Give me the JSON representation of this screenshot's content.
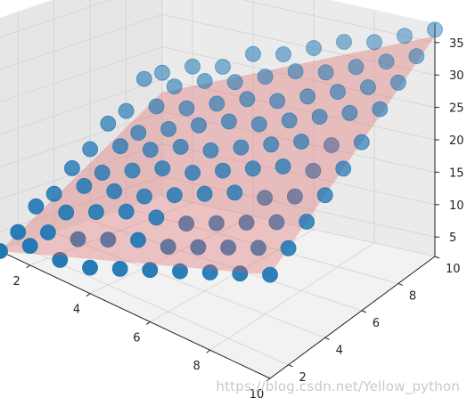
{
  "watermark": "https://blog.csdn.net/Yellow_python",
  "colors": {
    "point": "#1f77b4",
    "plane": "#e05a5a"
  },
  "chart_data": {
    "type": "scatter3d",
    "title": "",
    "xlabel": "",
    "ylabel": "",
    "zlabel": "",
    "xlim": [
      1,
      10
    ],
    "ylim": [
      1,
      10
    ],
    "zlim": [
      2,
      38
    ],
    "xticks": [
      2,
      4,
      6,
      8,
      10
    ],
    "yticks": [
      2,
      4,
      6,
      8,
      10
    ],
    "zticks": [
      5,
      10,
      15,
      20,
      25,
      30,
      35
    ],
    "fitted_plane": {
      "equation": "z = 2*x + 2*y - 2",
      "corners_z": [
        2,
        18,
        36,
        18
      ]
    },
    "points": [
      {
        "x": 1,
        "y": 1,
        "z": 2
      },
      {
        "x": 1,
        "y": 2,
        "z": 4
      },
      {
        "x": 1,
        "y": 3,
        "z": 7
      },
      {
        "x": 1,
        "y": 4,
        "z": 8
      },
      {
        "x": 1,
        "y": 5,
        "z": 11
      },
      {
        "x": 1,
        "y": 6,
        "z": 13
      },
      {
        "x": 1,
        "y": 7,
        "z": 16
      },
      {
        "x": 1,
        "y": 8,
        "z": 17
      },
      {
        "x": 1,
        "y": 9,
        "z": 21
      },
      {
        "x": 1,
        "y": 10,
        "z": 21
      },
      {
        "x": 2,
        "y": 1,
        "z": 5
      },
      {
        "x": 2,
        "y": 2,
        "z": 6
      },
      {
        "x": 2,
        "y": 3,
        "z": 8
      },
      {
        "x": 2,
        "y": 4,
        "z": 11
      },
      {
        "x": 2,
        "y": 5,
        "z": 12
      },
      {
        "x": 2,
        "y": 6,
        "z": 15
      },
      {
        "x": 2,
        "y": 7,
        "z": 16
      },
      {
        "x": 2,
        "y": 8,
        "z": 19
      },
      {
        "x": 2,
        "y": 9,
        "z": 21
      },
      {
        "x": 2,
        "y": 10,
        "z": 23
      },
      {
        "x": 3,
        "y": 1,
        "z": 5
      },
      {
        "x": 3,
        "y": 2,
        "z": 7
      },
      {
        "x": 3,
        "y": 3,
        "z": 10
      },
      {
        "x": 3,
        "y": 4,
        "z": 12
      },
      {
        "x": 3,
        "y": 5,
        "z": 14
      },
      {
        "x": 3,
        "y": 6,
        "z": 16
      },
      {
        "x": 3,
        "y": 7,
        "z": 18
      },
      {
        "x": 3,
        "y": 8,
        "z": 20
      },
      {
        "x": 3,
        "y": 9,
        "z": 23
      },
      {
        "x": 3,
        "y": 10,
        "z": 24
      },
      {
        "x": 4,
        "y": 1,
        "z": 6
      },
      {
        "x": 4,
        "y": 2,
        "z": 9
      },
      {
        "x": 4,
        "y": 3,
        "z": 12
      },
      {
        "x": 4,
        "y": 4,
        "z": 13
      },
      {
        "x": 4,
        "y": 5,
        "z": 16
      },
      {
        "x": 4,
        "y": 6,
        "z": 18
      },
      {
        "x": 4,
        "y": 7,
        "z": 20
      },
      {
        "x": 4,
        "y": 8,
        "z": 22
      },
      {
        "x": 4,
        "y": 9,
        "z": 24
      },
      {
        "x": 4,
        "y": 10,
        "z": 27
      },
      {
        "x": 5,
        "y": 1,
        "z": 8
      },
      {
        "x": 5,
        "y": 2,
        "z": 11
      },
      {
        "x": 5,
        "y": 3,
        "z": 13
      },
      {
        "x": 5,
        "y": 4,
        "z": 15
      },
      {
        "x": 5,
        "y": 5,
        "z": 17
      },
      {
        "x": 5,
        "y": 6,
        "z": 19
      },
      {
        "x": 5,
        "y": 7,
        "z": 22
      },
      {
        "x": 5,
        "y": 8,
        "z": 24
      },
      {
        "x": 5,
        "y": 9,
        "z": 26
      },
      {
        "x": 5,
        "y": 10,
        "z": 28
      },
      {
        "x": 6,
        "y": 1,
        "z": 10
      },
      {
        "x": 6,
        "y": 2,
        "z": 12
      },
      {
        "x": 6,
        "y": 3,
        "z": 14
      },
      {
        "x": 6,
        "y": 4,
        "z": 17
      },
      {
        "x": 6,
        "y": 5,
        "z": 19
      },
      {
        "x": 6,
        "y": 6,
        "z": 21
      },
      {
        "x": 6,
        "y": 7,
        "z": 23
      },
      {
        "x": 6,
        "y": 8,
        "z": 25
      },
      {
        "x": 6,
        "y": 9,
        "z": 28
      },
      {
        "x": 6,
        "y": 10,
        "z": 30
      },
      {
        "x": 7,
        "y": 1,
        "z": 12
      },
      {
        "x": 7,
        "y": 2,
        "z": 14
      },
      {
        "x": 7,
        "y": 3,
        "z": 16
      },
      {
        "x": 7,
        "y": 4,
        "z": 19
      },
      {
        "x": 7,
        "y": 5,
        "z": 21
      },
      {
        "x": 7,
        "y": 6,
        "z": 23
      },
      {
        "x": 7,
        "y": 7,
        "z": 25
      },
      {
        "x": 7,
        "y": 8,
        "z": 27
      },
      {
        "x": 7,
        "y": 9,
        "z": 29
      },
      {
        "x": 7,
        "y": 10,
        "z": 32
      },
      {
        "x": 8,
        "y": 1,
        "z": 14
      },
      {
        "x": 8,
        "y": 2,
        "z": 16
      },
      {
        "x": 8,
        "y": 3,
        "z": 18
      },
      {
        "x": 8,
        "y": 4,
        "z": 20
      },
      {
        "x": 8,
        "y": 5,
        "z": 23
      },
      {
        "x": 8,
        "y": 6,
        "z": 25
      },
      {
        "x": 8,
        "y": 7,
        "z": 27
      },
      {
        "x": 8,
        "y": 8,
        "z": 29
      },
      {
        "x": 8,
        "y": 9,
        "z": 31
      },
      {
        "x": 8,
        "y": 10,
        "z": 33
      },
      {
        "x": 9,
        "y": 1,
        "z": 16
      },
      {
        "x": 9,
        "y": 2,
        "z": 18
      },
      {
        "x": 9,
        "y": 3,
        "z": 20
      },
      {
        "x": 9,
        "y": 4,
        "z": 22
      },
      {
        "x": 9,
        "y": 5,
        "z": 24
      },
      {
        "x": 9,
        "y": 6,
        "z": 26
      },
      {
        "x": 9,
        "y": 7,
        "z": 29
      },
      {
        "x": 9,
        "y": 8,
        "z": 31
      },
      {
        "x": 9,
        "y": 9,
        "z": 33
      },
      {
        "x": 9,
        "y": 10,
        "z": 35
      },
      {
        "x": 10,
        "y": 1,
        "z": 18
      },
      {
        "x": 10,
        "y": 2,
        "z": 20
      },
      {
        "x": 10,
        "y": 3,
        "z": 22
      },
      {
        "x": 10,
        "y": 4,
        "z": 24
      },
      {
        "x": 10,
        "y": 5,
        "z": 26
      },
      {
        "x": 10,
        "y": 6,
        "z": 28
      },
      {
        "x": 10,
        "y": 7,
        "z": 31
      },
      {
        "x": 10,
        "y": 8,
        "z": 33
      },
      {
        "x": 10,
        "y": 9,
        "z": 35
      },
      {
        "x": 10,
        "y": 10,
        "z": 37
      }
    ]
  }
}
